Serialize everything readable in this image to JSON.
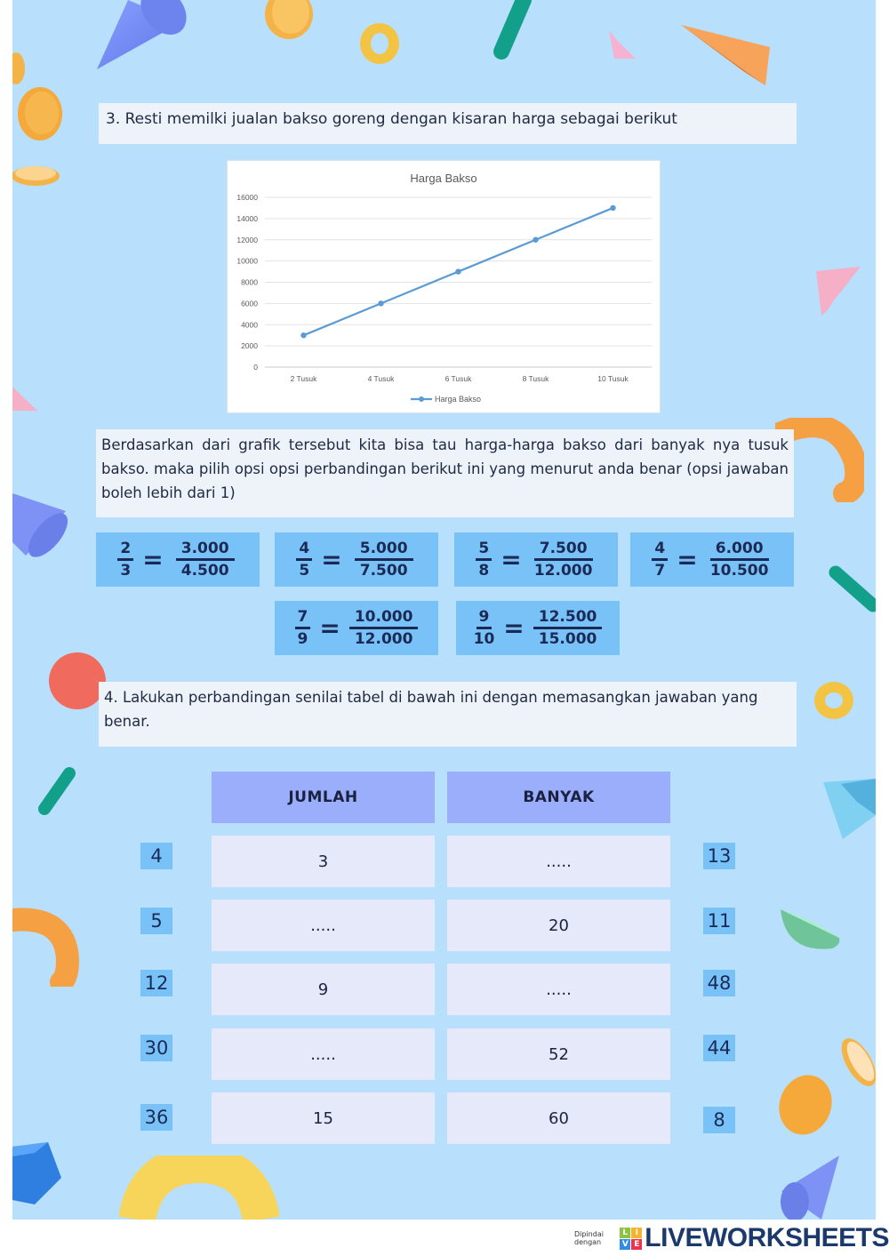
{
  "question3": {
    "title": "3. Resti memilki jualan bakso goreng dengan kisaran harga sebagai berikut",
    "instruction": "Berdasarkan dari grafik tersebut kita bisa tau harga-harga bakso dari banyak nya tusuk bakso. maka pilih opsi opsi perbandingan berikut ini yang menurut anda benar (opsi jawaban boleh lebih dari 1)",
    "options": [
      {
        "left_num": "2",
        "left_den": "3",
        "right_num": "3.000",
        "right_den": "4.500"
      },
      {
        "left_num": "4",
        "left_den": "5",
        "right_num": "5.000",
        "right_den": "7.500"
      },
      {
        "left_num": "5",
        "left_den": "8",
        "right_num": "7.500",
        "right_den": "12.000"
      },
      {
        "left_num": "4",
        "left_den": "7",
        "right_num": "6.000",
        "right_den": "10.500"
      },
      {
        "left_num": "7",
        "left_den": "9",
        "right_num": "10.000",
        "right_den": "12.000"
      },
      {
        "left_num": "9",
        "left_den": "10",
        "right_num": "12.500",
        "right_den": "15.000"
      }
    ],
    "equals_sign": "="
  },
  "chart_data": {
    "type": "line",
    "title": "Harga Bakso",
    "categories": [
      "2 Tusuk",
      "4 Tusuk",
      "6 Tusuk",
      "8 Tusuk",
      "10 Tusuk"
    ],
    "series": [
      {
        "name": "Harga Bakso",
        "values": [
          3000,
          6000,
          9000,
          12000,
          15000
        ],
        "color": "#5b9bd5"
      }
    ],
    "xlabel": "",
    "ylabel": "",
    "ylim": [
      0,
      16000
    ],
    "yticks": [
      "0",
      "2000",
      "4000",
      "6000",
      "8000",
      "10000",
      "12000",
      "14000",
      "16000"
    ],
    "grid": true,
    "legend_position": "bottom"
  },
  "question4": {
    "title": "4. Lakukan perbandingan senilai tabel di bawah ini dengan memasangkan jawaban yang benar.",
    "headers": [
      "JUMLAH",
      "BANYAK"
    ],
    "rows": [
      {
        "jumlah": "3",
        "banyak": "....."
      },
      {
        "jumlah": ".....",
        "banyak": "20"
      },
      {
        "jumlah": "9",
        "banyak": "....."
      },
      {
        "jumlah": ".....",
        "banyak": "52"
      },
      {
        "jumlah": "15",
        "banyak": "60"
      }
    ],
    "left_chips": [
      "4",
      "5",
      "12",
      "30",
      "36"
    ],
    "right_chips": [
      "13",
      "11",
      "48",
      "44",
      "8"
    ]
  },
  "footer": {
    "scanned_with": "Dipindai dengan",
    "brand": "LIVEWORKSHEETS",
    "logo_letters": [
      "L",
      "I",
      "V",
      "E"
    ]
  },
  "colors": {
    "page_bg": "#b8dffb",
    "card_bg": "#eef3f9",
    "option_bg": "#79c2f8",
    "table_header_bg": "#9baefc",
    "table_cell_bg": "#e6e9fa",
    "chart_line": "#5b9bd5",
    "text_dark": "#1b2a55"
  }
}
